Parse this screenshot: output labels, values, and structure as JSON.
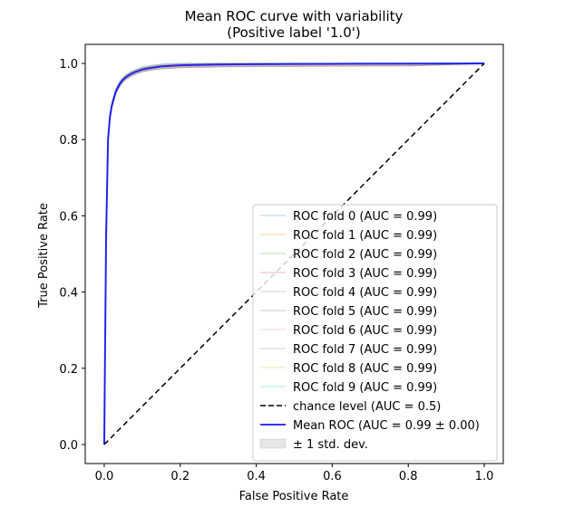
{
  "chart_data": {
    "type": "line",
    "title": "Mean ROC curve with variability",
    "subtitle": "(Positive label '1.0')",
    "xlabel": "False Positive Rate",
    "ylabel": "True Positive Rate",
    "xlim": [
      -0.05,
      1.05
    ],
    "ylim": [
      -0.05,
      1.05
    ],
    "xticks": [
      "0.0",
      "0.2",
      "0.4",
      "0.6",
      "0.8",
      "1.0"
    ],
    "yticks": [
      "0.0",
      "0.2",
      "0.4",
      "0.6",
      "0.8",
      "1.0"
    ],
    "grid": false,
    "legend_position": "lower right",
    "legend": [
      {
        "label": "ROC fold 0 (AUC = 0.99)",
        "color": "#1f77b4",
        "style": "fold"
      },
      {
        "label": "ROC fold 1 (AUC = 0.99)",
        "color": "#ff7f0e",
        "style": "fold"
      },
      {
        "label": "ROC fold 2 (AUC = 0.99)",
        "color": "#2ca02c",
        "style": "fold"
      },
      {
        "label": "ROC fold 3 (AUC = 0.99)",
        "color": "#d62728",
        "style": "fold"
      },
      {
        "label": "ROC fold 4 (AUC = 0.99)",
        "color": "#9467bd",
        "style": "fold"
      },
      {
        "label": "ROC fold 5 (AUC = 0.99)",
        "color": "#8c564b",
        "style": "fold"
      },
      {
        "label": "ROC fold 6 (AUC = 0.99)",
        "color": "#e377c2",
        "style": "fold"
      },
      {
        "label": "ROC fold 7 (AUC = 0.99)",
        "color": "#7f7f7f",
        "style": "fold"
      },
      {
        "label": "ROC fold 8 (AUC = 0.99)",
        "color": "#bcbd22",
        "style": "fold"
      },
      {
        "label": "ROC fold 9 (AUC = 0.99)",
        "color": "#17becf",
        "style": "fold"
      },
      {
        "label": "chance level (AUC = 0.5)",
        "color": "#000000",
        "style": "dashed"
      },
      {
        "label": "Mean ROC (AUC = 0.99 ± 0.00)",
        "color": "#0000ff",
        "style": "mean"
      },
      {
        "label": "± 1 std. dev.",
        "color": "#808080",
        "style": "band"
      }
    ],
    "mean_roc": {
      "x": [
        0.0,
        0.005,
        0.01,
        0.015,
        0.02,
        0.03,
        0.04,
        0.05,
        0.06,
        0.07,
        0.08,
        0.1,
        0.12,
        0.15,
        0.2,
        0.3,
        0.4,
        0.5,
        0.6,
        0.8,
        1.0
      ],
      "y": [
        0.0,
        0.55,
        0.8,
        0.86,
        0.89,
        0.925,
        0.945,
        0.958,
        0.966,
        0.972,
        0.977,
        0.984,
        0.988,
        0.992,
        0.995,
        0.997,
        0.998,
        0.9985,
        0.999,
        0.9995,
        1.0
      ]
    },
    "std_band": 0.006,
    "chance_line": {
      "x": [
        0,
        1
      ],
      "y": [
        0,
        1
      ]
    }
  }
}
